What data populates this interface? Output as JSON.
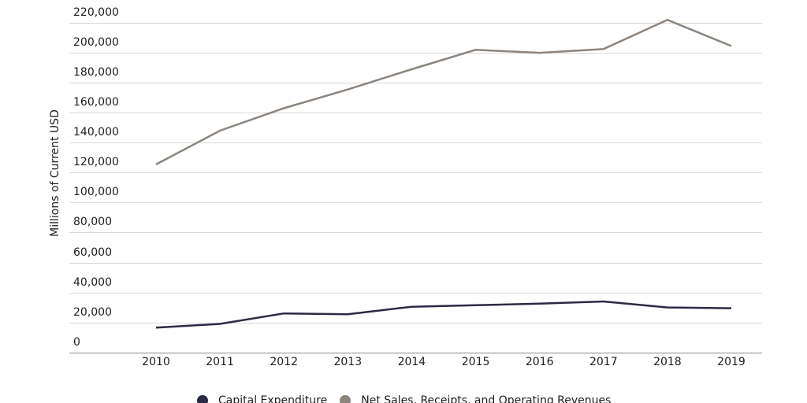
{
  "chart_data": {
    "type": "line",
    "title": "",
    "xlabel": "",
    "ylabel": "Millions of Current USD",
    "x": [
      "2010",
      "2011",
      "2012",
      "2013",
      "2014",
      "2015",
      "2016",
      "2017",
      "2018",
      "2019"
    ],
    "series": [
      {
        "name": "Capital Expenditure",
        "color": "#2a2a47",
        "values": [
          16500,
          19000,
          26000,
          25500,
          30500,
          31500,
          32500,
          34000,
          30000,
          29500
        ]
      },
      {
        "name": "Net Sales, Receipts, and Operating Revenues",
        "color": "#8c857d",
        "values": [
          125500,
          148000,
          163000,
          175500,
          189000,
          202000,
          200000,
          202500,
          222000,
          204500
        ]
      }
    ],
    "ylim": [
      0,
      220000
    ],
    "ytick_step": 20000,
    "ytick_format": "thousands-comma",
    "grid": "horizontal",
    "gridline_color": "#d9d9d9",
    "baseline_color": "#8a8a8a",
    "legend_position": "bottom"
  }
}
